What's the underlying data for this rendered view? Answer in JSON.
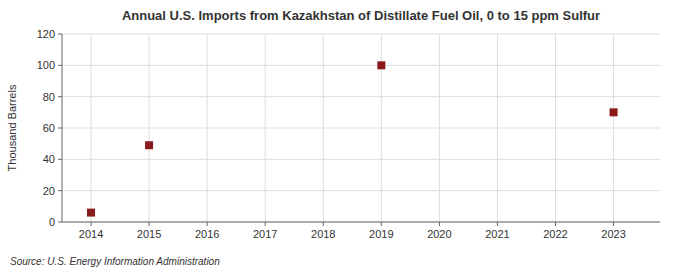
{
  "chart_data": {
    "type": "scatter",
    "title": "Annual U.S. Imports from Kazakhstan of Distillate Fuel Oil, 0 to 15 ppm Sulfur",
    "y_label": "Thousand Barrels",
    "source": "Source: U.S. Energy Information Administration",
    "x": [
      2014,
      2015,
      2019,
      2023
    ],
    "values": [
      6,
      49,
      100,
      70
    ],
    "color": "#8b1a1a",
    "marker": "square",
    "xlim": [
      2013.5,
      2023.8
    ],
    "ylim": [
      0,
      120
    ],
    "xticks": [
      2014,
      2015,
      2016,
      2017,
      2018,
      2019,
      2020,
      2021,
      2022,
      2023
    ],
    "yticks": [
      0,
      20,
      40,
      60,
      80,
      100,
      120
    ],
    "grid": true
  }
}
